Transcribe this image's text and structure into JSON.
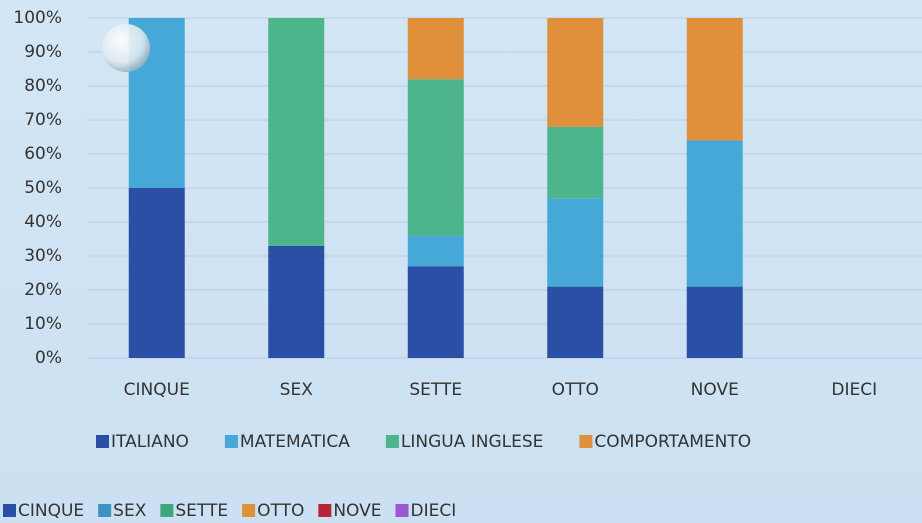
{
  "chart_data": {
    "type": "stacked_bar_percent",
    "categories": [
      "CINQUE",
      "SEX",
      "SETTE",
      "OTTO",
      "NOVE",
      "DIECI"
    ],
    "series": [
      {
        "name": "ITALIANO",
        "color": "#2a4fa5",
        "values": [
          50,
          33,
          27,
          21,
          21,
          null
        ]
      },
      {
        "name": "MATEMATICA",
        "color": "#46a8d6",
        "values": [
          50,
          0,
          9,
          26,
          43,
          null
        ]
      },
      {
        "name": "LINGUA INGLESE",
        "color": "#4db58c",
        "values": [
          0,
          67,
          46,
          21,
          0,
          null
        ]
      },
      {
        "name": "COMPORTAMENTO",
        "color": "#e08f3a",
        "values": [
          0,
          0,
          18,
          32,
          36,
          null
        ]
      }
    ],
    "ylim": [
      0,
      100
    ],
    "yticks": [
      {
        "value": 0,
        "label": "0%"
      },
      {
        "value": 10,
        "label": "10%"
      },
      {
        "value": 20,
        "label": "20%"
      },
      {
        "value": 30,
        "label": "30%"
      },
      {
        "value": 40,
        "label": "40%"
      },
      {
        "value": 50,
        "label": "50%"
      },
      {
        "value": 60,
        "label": "60%"
      },
      {
        "value": 70,
        "label": "70%"
      },
      {
        "value": 80,
        "label": "80%"
      },
      {
        "value": 90,
        "label": "90%"
      },
      {
        "value": 100,
        "label": "100%"
      }
    ],
    "grid": true,
    "extra_legend": [
      {
        "name": "CINQUE",
        "color": "#2a4fa5"
      },
      {
        "name": "SEX",
        "color": "#3f93c4"
      },
      {
        "name": "SETTE",
        "color": "#3fa57a"
      },
      {
        "name": "OTTO",
        "color": "#e08f3a"
      },
      {
        "name": "NOVE",
        "color": "#b5253a"
      },
      {
        "name": "DIECI",
        "color": "#9b59d0"
      }
    ]
  }
}
